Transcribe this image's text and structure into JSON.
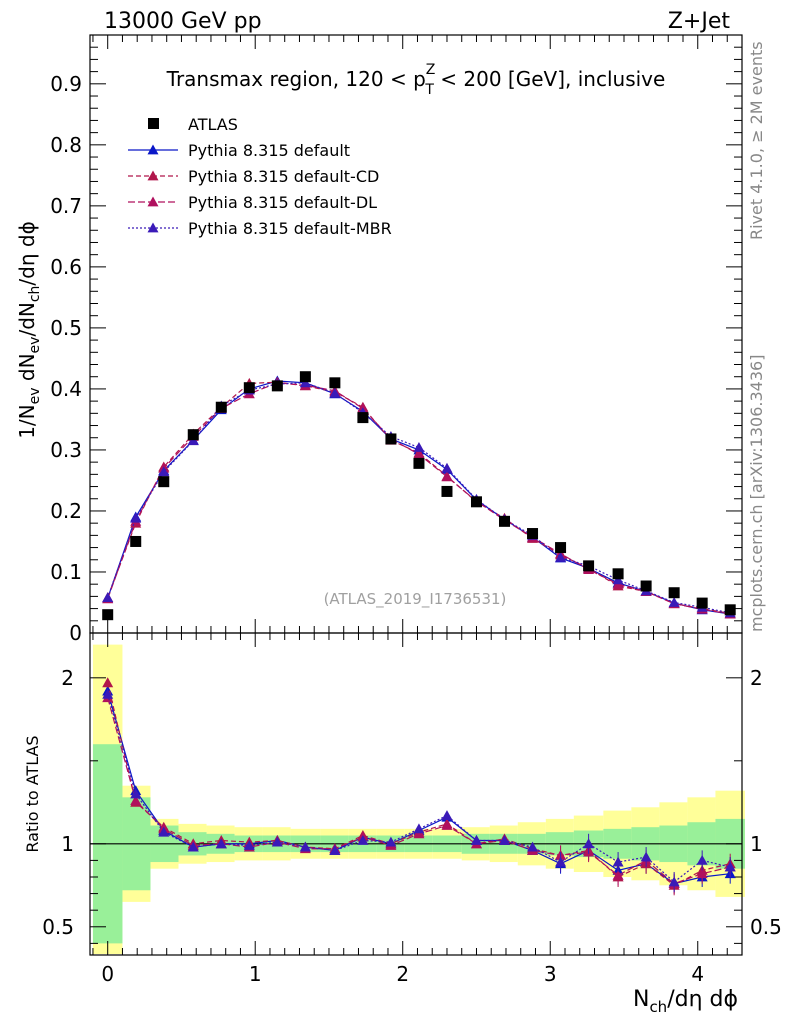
{
  "header": {
    "left": "13000 GeV pp",
    "right": "Z+Jet"
  },
  "side_labels": {
    "rivet": "Rivet 4.1.0, ≥ 2M events",
    "mcplots": "mcplots.cern.ch [arXiv:1306.3436]"
  },
  "chart_data": {
    "type": "scatter",
    "title_parts": {
      "pre": "Transmax region, 120 < p",
      "sup": "Z",
      "sub": "T",
      "post": " < 200 [GeV], inclusive"
    },
    "xlabel": {
      "N": "N",
      "sub": "ch",
      "rest": "/dη dϕ"
    },
    "ylabel": {
      "a": "1/N",
      "a_sub": "ev",
      "b": " dN",
      "b_sub": "ev",
      "c": "/dN",
      "c_sub": "ch",
      "d": "/dη dϕ"
    },
    "ratio_ylabel": "Ratio to ATLAS",
    "watermark": "(ATLAS_2019_I1736531)",
    "xlim": [
      -0.12,
      4.3
    ],
    "ylim": [
      0,
      0.98
    ],
    "ratio_ylim": [
      0.33,
      2.27
    ],
    "x_ticks": [
      {
        "v": 0,
        "label": "0"
      },
      {
        "v": 1,
        "label": "1"
      },
      {
        "v": 2,
        "label": "2"
      },
      {
        "v": 3,
        "label": "3"
      },
      {
        "v": 4,
        "label": "4"
      }
    ],
    "y_ticks": [
      {
        "v": 0,
        "label": "0"
      },
      {
        "v": 0.1,
        "label": "0.1"
      },
      {
        "v": 0.2,
        "label": "0.2"
      },
      {
        "v": 0.3,
        "label": "0.3"
      },
      {
        "v": 0.4,
        "label": "0.4"
      },
      {
        "v": 0.5,
        "label": "0.5"
      },
      {
        "v": 0.6,
        "label": "0.6"
      },
      {
        "v": 0.7,
        "label": "0.7"
      },
      {
        "v": 0.8,
        "label": "0.8"
      },
      {
        "v": 0.9,
        "label": "0.9"
      }
    ],
    "ratio_ticks": [
      {
        "v": 0.5,
        "label": "0.5"
      },
      {
        "v": 1,
        "label": "1"
      },
      {
        "v": 2,
        "label": "2"
      }
    ],
    "x": [
      0,
      0.19,
      0.38,
      0.58,
      0.77,
      0.96,
      1.15,
      1.34,
      1.54,
      1.73,
      1.92,
      2.11,
      2.3,
      2.5,
      2.69,
      2.88,
      3.07,
      3.26,
      3.46,
      3.65,
      3.84,
      4.03,
      4.22
    ],
    "bin_edges": [
      -0.1,
      0.1,
      0.29,
      0.48,
      0.67,
      0.86,
      1.05,
      1.24,
      1.44,
      1.63,
      1.82,
      2.01,
      2.2,
      2.4,
      2.59,
      2.78,
      2.97,
      3.16,
      3.36,
      3.55,
      3.74,
      3.93,
      4.12,
      4.32
    ],
    "band_inner": [
      0.6,
      0.28,
      0.11,
      0.07,
      0.06,
      0.05,
      0.05,
      0.05,
      0.05,
      0.05,
      0.05,
      0.05,
      0.05,
      0.06,
      0.06,
      0.06,
      0.07,
      0.08,
      0.09,
      0.1,
      0.11,
      0.13,
      0.15
    ],
    "band_outer": [
      1.2,
      0.35,
      0.15,
      0.12,
      0.11,
      0.1,
      0.1,
      0.09,
      0.09,
      0.09,
      0.09,
      0.09,
      0.09,
      0.1,
      0.11,
      0.13,
      0.15,
      0.17,
      0.2,
      0.22,
      0.25,
      0.28,
      0.32
    ],
    "data": {
      "name": "ATLAS",
      "values": [
        0.03,
        0.15,
        0.248,
        0.325,
        0.37,
        0.402,
        0.405,
        0.42,
        0.41,
        0.353,
        0.318,
        0.278,
        0.232,
        0.215,
        0.183,
        0.163,
        0.14,
        0.11,
        0.097,
        0.077,
        0.066,
        0.049,
        0.038
      ]
    },
    "series": [
      {
        "name": "Pythia 8.315 default",
        "color": "#0a17c8",
        "dash": "",
        "values": [
          0.057,
          0.19,
          0.266,
          0.316,
          0.366,
          0.4,
          0.413,
          0.41,
          0.392,
          0.363,
          0.318,
          0.3,
          0.268,
          0.218,
          0.186,
          0.157,
          0.123,
          0.106,
          0.082,
          0.068,
          0.049,
          0.038,
          0.031
        ],
        "ratio": [
          1.92,
          1.32,
          1.08,
          0.98,
          1.0,
          1.0,
          1.02,
          0.98,
          0.96,
          1.04,
          1.0,
          1.08,
          1.16,
          1.02,
          1.02,
          0.96,
          0.88,
          0.96,
          0.84,
          0.88,
          0.76,
          0.8,
          0.82
        ]
      },
      {
        "name": "Pythia 8.315 default-CD",
        "color": "#b1164b",
        "dash": "5,3",
        "values": [
          0.058,
          0.18,
          0.272,
          0.326,
          0.37,
          0.409,
          0.411,
          0.405,
          0.395,
          0.37,
          0.316,
          0.295,
          0.257,
          0.215,
          0.188,
          0.155,
          0.128,
          0.106,
          0.077,
          0.068,
          0.048,
          0.04,
          0.032
        ],
        "ratio": [
          1.97,
          1.25,
          1.1,
          1.0,
          1.02,
          1.01,
          1.02,
          0.98,
          0.97,
          1.05,
          1.0,
          1.07,
          1.12,
          1.0,
          1.03,
          0.97,
          0.93,
          0.96,
          0.8,
          0.88,
          0.75,
          0.84,
          0.88
        ]
      },
      {
        "name": "Pythia 8.315 default-DL",
        "color": "#b0105e",
        "dash": "7,3",
        "values": [
          0.056,
          0.183,
          0.27,
          0.322,
          0.368,
          0.392,
          0.41,
          0.406,
          0.397,
          0.368,
          0.318,
          0.293,
          0.256,
          0.216,
          0.185,
          0.157,
          0.13,
          0.104,
          0.08,
          0.068,
          0.048,
          0.039,
          0.031
        ],
        "ratio": [
          1.88,
          1.26,
          1.09,
          0.99,
          1.0,
          0.98,
          1.01,
          0.97,
          0.97,
          1.04,
          0.99,
          1.06,
          1.11,
          1.0,
          1.02,
          0.96,
          0.93,
          0.95,
          0.81,
          0.9,
          0.76,
          0.82,
          0.86
        ]
      },
      {
        "name": "Pythia 8.315 default-MBR",
        "color": "#3a1ab8",
        "dash": "2,2",
        "values": [
          0.058,
          0.188,
          0.264,
          0.315,
          0.372,
          0.398,
          0.408,
          0.41,
          0.393,
          0.361,
          0.322,
          0.304,
          0.27,
          0.219,
          0.186,
          0.16,
          0.124,
          0.11,
          0.087,
          0.069,
          0.05,
          0.042,
          0.033
        ],
        "ratio": [
          1.9,
          1.3,
          1.07,
          0.98,
          1.0,
          0.99,
          1.01,
          0.98,
          0.96,
          1.02,
          1.01,
          1.09,
          1.17,
          1.02,
          1.02,
          0.98,
          0.89,
          1.0,
          0.89,
          0.92,
          0.77,
          0.9,
          0.86
        ]
      }
    ]
  }
}
